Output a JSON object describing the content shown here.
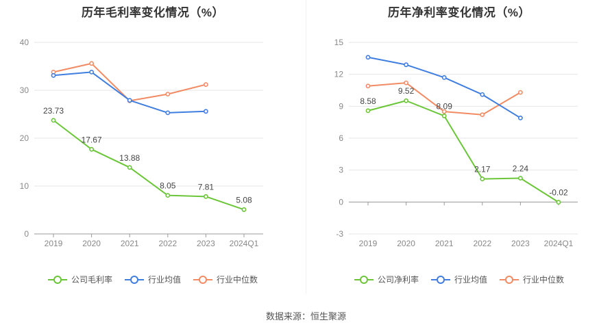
{
  "source_label": "数据来源：恒生聚源",
  "colors": {
    "company": "#6ac637",
    "avg": "#3f7ee0",
    "median": "#f28b63"
  },
  "chart_data": [
    {
      "type": "line",
      "title": "历年毛利率变化情况（%）",
      "categories": [
        "2019",
        "2020",
        "2021",
        "2022",
        "2023",
        "2024Q1"
      ],
      "ylim": [
        0,
        40
      ],
      "yticks": [
        0,
        10,
        20,
        30,
        40
      ],
      "grid": true,
      "legend_position": "bottom",
      "series": [
        {
          "key": "company",
          "name": "公司毛利率",
          "values": [
            23.73,
            17.67,
            13.88,
            8.05,
            7.81,
            5.08
          ],
          "labels": [
            "23.73",
            "17.67",
            "13.88",
            "8.05",
            "7.81",
            "5.08"
          ]
        },
        {
          "key": "avg",
          "name": "行业均值",
          "values": [
            33.1,
            33.8,
            27.9,
            25.3,
            25.6,
            null
          ]
        },
        {
          "key": "median",
          "name": "行业中位数",
          "values": [
            33.8,
            35.6,
            27.8,
            29.2,
            31.2,
            null
          ]
        }
      ]
    },
    {
      "type": "line",
      "title": "历年净利率变化情况（%）",
      "categories": [
        "2019",
        "2020",
        "2021",
        "2022",
        "2023",
        "2024Q1"
      ],
      "ylim": [
        -3,
        15
      ],
      "yticks": [
        -3,
        0,
        3,
        6,
        9,
        12,
        15
      ],
      "grid": true,
      "legend_position": "bottom",
      "series": [
        {
          "key": "company",
          "name": "公司净利率",
          "values": [
            8.58,
            9.52,
            8.09,
            2.17,
            2.24,
            -0.02
          ],
          "labels": [
            "8.58",
            "9.52",
            "8.09",
            "2.17",
            "2.24",
            "-0.02"
          ]
        },
        {
          "key": "avg",
          "name": "行业均值",
          "values": [
            13.6,
            12.9,
            11.7,
            10.1,
            7.9,
            null
          ]
        },
        {
          "key": "median",
          "name": "行业中位数",
          "values": [
            10.9,
            11.2,
            8.5,
            8.2,
            10.3,
            null
          ]
        }
      ]
    }
  ]
}
